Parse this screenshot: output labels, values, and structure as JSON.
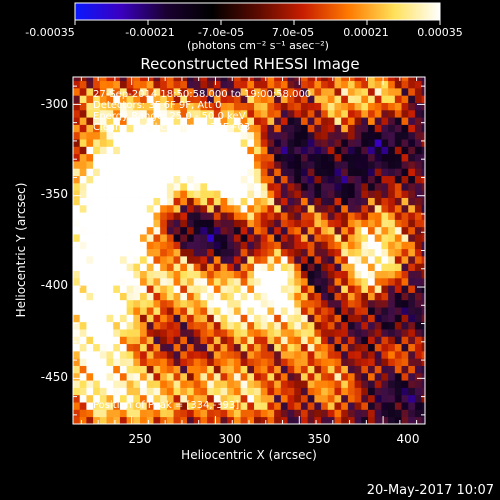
{
  "colorbar": {
    "tick_labels": [
      "-0.00035",
      "-0.00021",
      "-7.0e-05",
      "7.0e-05",
      "0.00021",
      "0.00035"
    ],
    "unit_label": "(photons cm⁻² s⁻¹ asec⁻²)",
    "range": [
      -0.00035,
      0.00035
    ],
    "colors": {
      "stops": [
        "#0a1aff",
        "#3a00c0",
        "#1a0030",
        "#000000",
        "#5a0a00",
        "#c81e00",
        "#ff7a00",
        "#ffe15a",
        "#ffffff"
      ]
    }
  },
  "title": "Reconstructed RHESSI Image",
  "info_lines": [
    "27-Sep-2014 18:50:58.000 to 19:00:58.000",
    "Detectors: 3F 6F 9F, Att 0",
    "Energy Range: 25.0 - 50.0 keV",
    "Clean    Total counts: 4.74E+03"
  ],
  "peak_text": "Position of Peak = [334,-393]",
  "timestamp": "20-May-2017 10:07",
  "chart_data": {
    "type": "heatmap",
    "title": "Reconstructed RHESSI Image",
    "xlabel": "Heliocentric X (arcsec)",
    "ylabel": "Heliocentric Y (arcsec)",
    "xlim": [
      215,
      425
    ],
    "ylim": [
      -475,
      -285
    ],
    "x_ticks": [
      "250",
      "300",
      "350",
      "400"
    ],
    "y_ticks": [
      "-300",
      "-350",
      "-400",
      "-450"
    ],
    "x_tick_values": [
      250,
      300,
      350,
      400
    ],
    "y_tick_values": [
      -300,
      -350,
      -400,
      -450
    ],
    "peak_position": [
      334,
      -393
    ],
    "value_range": [
      -0.00035,
      0.00035
    ],
    "colorscale": "hot-blue diverging",
    "grid": false
  }
}
